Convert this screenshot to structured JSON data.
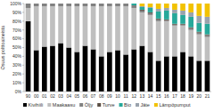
{
  "chart_data": {
    "type": "bar",
    "stacked": true,
    "y_label": "Osuus polttoaineista",
    "categories": [
      "90",
      "00",
      "01",
      "02",
      "03",
      "04",
      "05",
      "06",
      "07",
      "08",
      "09",
      "10",
      "11",
      "12",
      "13",
      "14",
      "15",
      "16",
      "17",
      "18",
      "19",
      "20",
      "21"
    ],
    "series": [
      {
        "name": "Kivihiili",
        "color": "#000000",
        "values": [
          80,
          47,
          51,
          52,
          55,
          50,
          45,
          52,
          48,
          40,
          45,
          47,
          42,
          48,
          52,
          45,
          35,
          40,
          40,
          45,
          40,
          35,
          35
        ]
      },
      {
        "name": "Maakaasu",
        "color": "#bfbfbf",
        "values": [
          15,
          50,
          46,
          45,
          42,
          47,
          52,
          45,
          49,
          57,
          52,
          50,
          55,
          47,
          38,
          42,
          45,
          40,
          35,
          30,
          30,
          30,
          27
        ]
      },
      {
        "name": "Öljy",
        "color": "#808080",
        "values": [
          5,
          3,
          3,
          3,
          3,
          3,
          3,
          3,
          3,
          3,
          3,
          3,
          3,
          3,
          2,
          2,
          2,
          1,
          1,
          1,
          2,
          2,
          2
        ]
      },
      {
        "name": "Turve",
        "color": "#5a4f46",
        "values": [
          0,
          0,
          0,
          0,
          0,
          0,
          0,
          0,
          0,
          0,
          0,
          0,
          0,
          0,
          1,
          1,
          1,
          1,
          1,
          1,
          1,
          1,
          1
        ]
      },
      {
        "name": "Bio",
        "color": "#26a89a",
        "values": [
          0,
          0,
          0,
          0,
          0,
          0,
          0,
          0,
          0,
          0,
          0,
          0,
          0,
          2,
          3,
          5,
          8,
          10,
          12,
          10,
          12,
          10,
          12
        ]
      },
      {
        "name": "Jäte",
        "color": "#9aa3ad",
        "values": [
          0,
          0,
          0,
          0,
          0,
          0,
          0,
          0,
          0,
          0,
          0,
          0,
          0,
          0,
          1,
          1,
          3,
          3,
          4,
          5,
          5,
          8,
          8
        ]
      },
      {
        "name": "Lämpöpumput",
        "color": "#f2c200",
        "values": [
          0,
          0,
          0,
          0,
          0,
          0,
          0,
          0,
          0,
          0,
          0,
          0,
          0,
          0,
          3,
          4,
          6,
          5,
          7,
          8,
          10,
          14,
          15
        ]
      }
    ],
    "ylim": [
      0,
      100
    ],
    "yticks": [
      {
        "value": 0,
        "label": "0%"
      },
      {
        "value": 10,
        "label": "10%"
      },
      {
        "value": 20,
        "label": "20%"
      },
      {
        "value": 30,
        "label": "30%"
      },
      {
        "value": 40,
        "label": "40%"
      },
      {
        "value": 50,
        "label": "50%"
      },
      {
        "value": 60,
        "label": "60%"
      },
      {
        "value": 70,
        "label": "70%"
      },
      {
        "value": 80,
        "label": "80%"
      },
      {
        "value": 90,
        "label": "90%"
      },
      {
        "value": 100,
        "label": "100%"
      }
    ],
    "grid": false,
    "legend": "bottom"
  }
}
